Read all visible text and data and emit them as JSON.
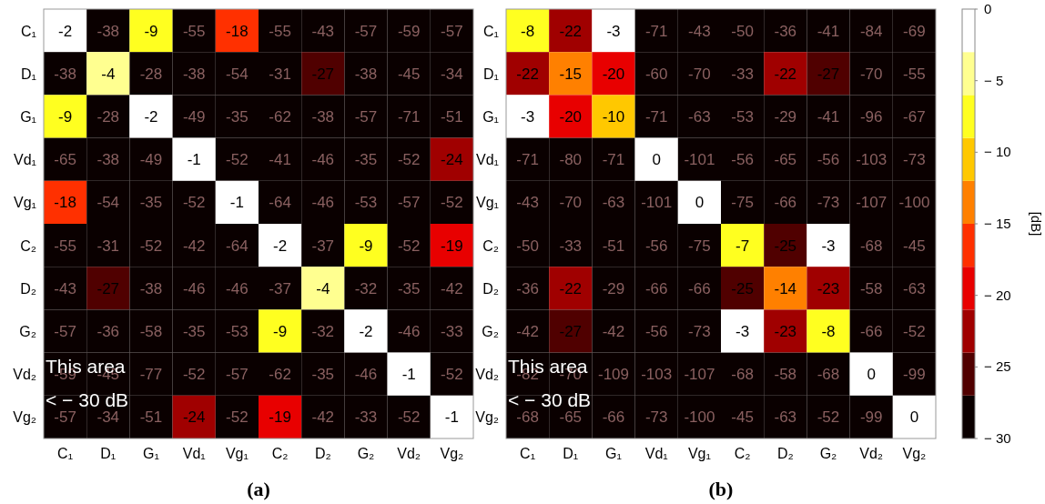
{
  "chart_data": [
    {
      "type": "heatmap",
      "title": "(a)",
      "categories": [
        "C₁",
        "D₁",
        "G₁",
        "Vd₁",
        "Vg₁",
        "C₂",
        "D₂",
        "G₂",
        "Vd₂",
        "Vg₂"
      ],
      "y_categories": [
        "C₁",
        "D₁",
        "G₁",
        "Vd₁",
        "Vg₁",
        "C₂",
        "D₂",
        "G₂",
        "Vd₂",
        "Vg₂"
      ],
      "cells": [
        [
          -2,
          -38,
          -9,
          -55,
          -18,
          -55,
          -43,
          -57,
          -59,
          -57
        ],
        [
          -38,
          -4,
          -28,
          -38,
          -54,
          -31,
          -27,
          -38,
          -45,
          -34
        ],
        [
          -9,
          -28,
          -2,
          -49,
          -35,
          -62,
          -38,
          -57,
          -71,
          -51
        ],
        [
          -65,
          -38,
          -49,
          -1,
          -52,
          -41,
          -46,
          -35,
          -52,
          -24
        ],
        [
          -18,
          -54,
          -35,
          -52,
          -1,
          -64,
          -46,
          -53,
          -57,
          -52
        ],
        [
          -55,
          -31,
          -52,
          -42,
          -64,
          -2,
          -37,
          -9,
          -52,
          -19
        ],
        [
          -43,
          -27,
          -38,
          -46,
          -46,
          -37,
          -4,
          -32,
          -35,
          -42
        ],
        [
          -57,
          -36,
          -58,
          -35,
          -53,
          -9,
          -32,
          -2,
          -46,
          -33
        ],
        [
          -59,
          -45,
          -77,
          -52,
          -57,
          -62,
          -35,
          -46,
          -1,
          -52
        ],
        [
          -57,
          -34,
          -51,
          -24,
          -52,
          -19,
          -42,
          -33,
          -52,
          -1
        ]
      ],
      "data_labels": true,
      "annotations": [
        "This area\n< − 30 dB"
      ]
    },
    {
      "type": "heatmap",
      "title": "(b)",
      "categories": [
        "C₁",
        "D₁",
        "G₁",
        "Vd₁",
        "Vg₁",
        "C₂",
        "D₂",
        "G₂",
        "Vd₂",
        "Vg₂"
      ],
      "y_categories": [
        "C₁",
        "D₁",
        "G₁",
        "Vd₁",
        "Vg₁",
        "C₂",
        "D₂",
        "G₂",
        "Vd₂",
        "Vg₂"
      ],
      "cells": [
        [
          -8,
          -22,
          -3,
          -71,
          -43,
          -50,
          -36,
          -41,
          -84,
          -69
        ],
        [
          -22,
          -15,
          -20,
          -60,
          -70,
          -33,
          -22,
          -27,
          -70,
          -55
        ],
        [
          -3,
          -20,
          -10,
          -71,
          -63,
          -53,
          -29,
          -41,
          -96,
          -67
        ],
        [
          -71,
          -80,
          -71,
          0,
          -101,
          -56,
          -65,
          -56,
          -103,
          -73
        ],
        [
          -43,
          -70,
          -63,
          -101,
          0,
          -75,
          -66,
          -73,
          -107,
          -100
        ],
        [
          -50,
          -33,
          -51,
          -56,
          -75,
          -7,
          -25,
          -3,
          -68,
          -45
        ],
        [
          -36,
          -22,
          -29,
          -66,
          -66,
          -25,
          -14,
          -23,
          -58,
          -63
        ],
        [
          -42,
          -27,
          -42,
          -56,
          -73,
          -3,
          -23,
          -8,
          -66,
          -52
        ],
        [
          -82,
          -70,
          -109,
          -103,
          -107,
          -68,
          -58,
          -68,
          0,
          -99
        ],
        [
          -68,
          -65,
          -66,
          -73,
          -100,
          -45,
          -63,
          -52,
          -99,
          0
        ]
      ],
      "data_labels": true,
      "annotations": [
        "This area\n< − 30 dB"
      ],
      "clim": [
        -30,
        0
      ],
      "cticks": [
        {
          "value": 0,
          "label": "0"
        },
        {
          "value": -5,
          "label": "− 5"
        },
        {
          "value": -10,
          "label": "− 10"
        },
        {
          "value": -15,
          "label": "− 15"
        },
        {
          "value": -20,
          "label": "− 20"
        },
        {
          "value": -25,
          "label": "− 25"
        },
        {
          "value": -30,
          "label": "− 30"
        }
      ],
      "clabel": "[dB]"
    }
  ]
}
